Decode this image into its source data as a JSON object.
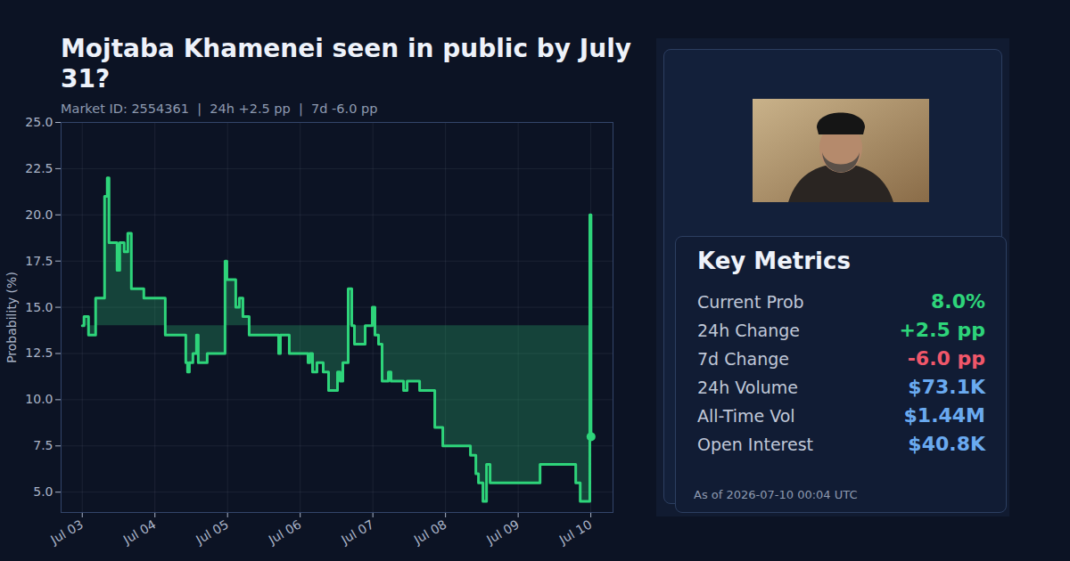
{
  "chart_data": {
    "type": "line",
    "title": "Mojtaba Khamenei seen in public by July 31?",
    "subtitle": "Market ID: 2554361  |  24h +2.5 pp  |  7d -6.0 pp",
    "y_label": "Probability (%)",
    "color": "#2ed47a",
    "marker": "last",
    "grid": true,
    "x": [
      "2026-07-03T00:00Z",
      "2026-07-03T00:35Z",
      "2026-07-03T02:04Z",
      "2026-07-03T04:25Z",
      "2026-07-03T06:11Z",
      "2026-07-03T07:22Z",
      "2026-07-03T08:15Z",
      "2026-07-03T08:50Z",
      "2026-07-03T11:30Z",
      "2026-07-03T12:23Z",
      "2026-07-03T13:51Z",
      "2026-07-03T15:02Z",
      "2026-07-03T16:13Z",
      "2026-07-03T20:20Z",
      "2026-07-04T03:25Z",
      "2026-07-04T10:12Z",
      "2026-07-04T10:47Z",
      "2026-07-04T11:23Z",
      "2026-07-04T12:33Z",
      "2026-07-04T13:44Z",
      "2026-07-04T14:19Z",
      "2026-07-04T17:16Z",
      "2026-07-04T23:10Z",
      "2026-07-04T23:46Z",
      "2026-07-05T02:42Z",
      "2026-07-05T03:53Z",
      "2026-07-05T05:04Z",
      "2026-07-05T07:08Z",
      "2026-07-05T16:52Z",
      "2026-07-05T17:27Z",
      "2026-07-05T20:23Z",
      "2026-07-06T02:35Z",
      "2026-07-06T03:10Z",
      "2026-07-06T04:04Z",
      "2026-07-06T05:32Z",
      "2026-07-06T07:36Z",
      "2026-07-06T09:22Z",
      "2026-07-06T12:19Z",
      "2026-07-06T13:12Z",
      "2026-07-06T14:05Z",
      "2026-07-06T15:51Z",
      "2026-07-06T17:02Z",
      "2026-07-06T17:55Z",
      "2026-07-06T21:27Z",
      "2026-07-06T23:49Z",
      "2026-07-07T00:41Z",
      "2026-07-07T01:52Z",
      "2026-07-07T03:03Z",
      "2026-07-07T05:07Z",
      "2026-07-07T06:00Z",
      "2026-07-07T10:08Z",
      "2026-07-07T11:19Z",
      "2026-07-07T15:26Z",
      "2026-07-07T20:27Z",
      "2026-07-07T23:06Z",
      "2026-07-08T08:14Z",
      "2026-07-08T10:01Z",
      "2026-07-08T10:53Z",
      "2026-07-08T12:22Z",
      "2026-07-08T13:33Z",
      "2026-07-08T14:43Z",
      "2026-07-09T07:14Z",
      "2026-07-09T19:01Z",
      "2026-07-09T20:30Z",
      "2026-07-09T23:40Z",
      "2026-07-10T00:04Z"
    ],
    "values": [
      14.0,
      14.5,
      13.5,
      15.5,
      15.5,
      21.0,
      22.0,
      18.5,
      17.0,
      18.5,
      18.0,
      19.0,
      16.0,
      15.5,
      13.5,
      12.0,
      11.5,
      12.0,
      12.5,
      13.5,
      12.0,
      12.5,
      17.5,
      16.5,
      15.0,
      15.5,
      14.5,
      13.5,
      12.5,
      13.5,
      12.5,
      12.0,
      12.5,
      11.5,
      12.0,
      11.5,
      10.5,
      11.5,
      11.0,
      12.0,
      16.0,
      14.0,
      13.0,
      14.0,
      15.0,
      13.5,
      13.0,
      11.0,
      11.5,
      11.0,
      10.5,
      11.0,
      10.5,
      8.5,
      7.5,
      7.0,
      6.0,
      5.5,
      4.5,
      6.5,
      5.5,
      6.5,
      5.5,
      4.5,
      20.0,
      8.0
    ],
    "xlim": [
      "2026-07-02T17:00Z",
      "2026-07-10T07:20Z"
    ],
    "xticks": [
      {
        "value": "2026-07-03T00:00Z",
        "label": "Jul 03"
      },
      {
        "value": "2026-07-04T00:00Z",
        "label": "Jul 04"
      },
      {
        "value": "2026-07-05T00:00Z",
        "label": "Jul 05"
      },
      {
        "value": "2026-07-06T00:00Z",
        "label": "Jul 06"
      },
      {
        "value": "2026-07-07T00:00Z",
        "label": "Jul 07"
      },
      {
        "value": "2026-07-08T00:00Z",
        "label": "Jul 08"
      },
      {
        "value": "2026-07-09T00:00Z",
        "label": "Jul 09"
      },
      {
        "value": "2026-07-10T00:00Z",
        "label": "Jul 10"
      }
    ],
    "ylim": [
      3.9,
      25
    ],
    "yticks": [
      {
        "value": 5,
        "label": "5.0"
      },
      7.5,
      {
        "value": 10,
        "label": "10.0"
      },
      12.5,
      {
        "value": 15,
        "label": "15.0"
      },
      17.5,
      {
        "value": 20,
        "label": "20.0"
      },
      22.5,
      {
        "value": 25,
        "label": "25.0"
      }
    ]
  },
  "key_metrics": {
    "title": "Key Metrics",
    "rows": [
      {
        "label": "Current Prob",
        "value": "8.0%",
        "color": "#2ed47a"
      },
      {
        "label": "24h Change",
        "value": "+2.5 pp",
        "color": "#2ed47a"
      },
      {
        "label": "7d Change",
        "value": "-6.0 pp",
        "color": "#f0576a"
      },
      {
        "label": "24h Volume",
        "value": "$73.1K",
        "color": "#6aaaf0"
      },
      {
        "label": "All-Time Vol",
        "value": "$1.44M",
        "color": "#6aaaf0"
      },
      {
        "label": "Open Interest",
        "value": "$40.8K",
        "color": "#6aaaf0"
      }
    ],
    "as_of": "As of 2026-07-10 00:04 UTC"
  }
}
